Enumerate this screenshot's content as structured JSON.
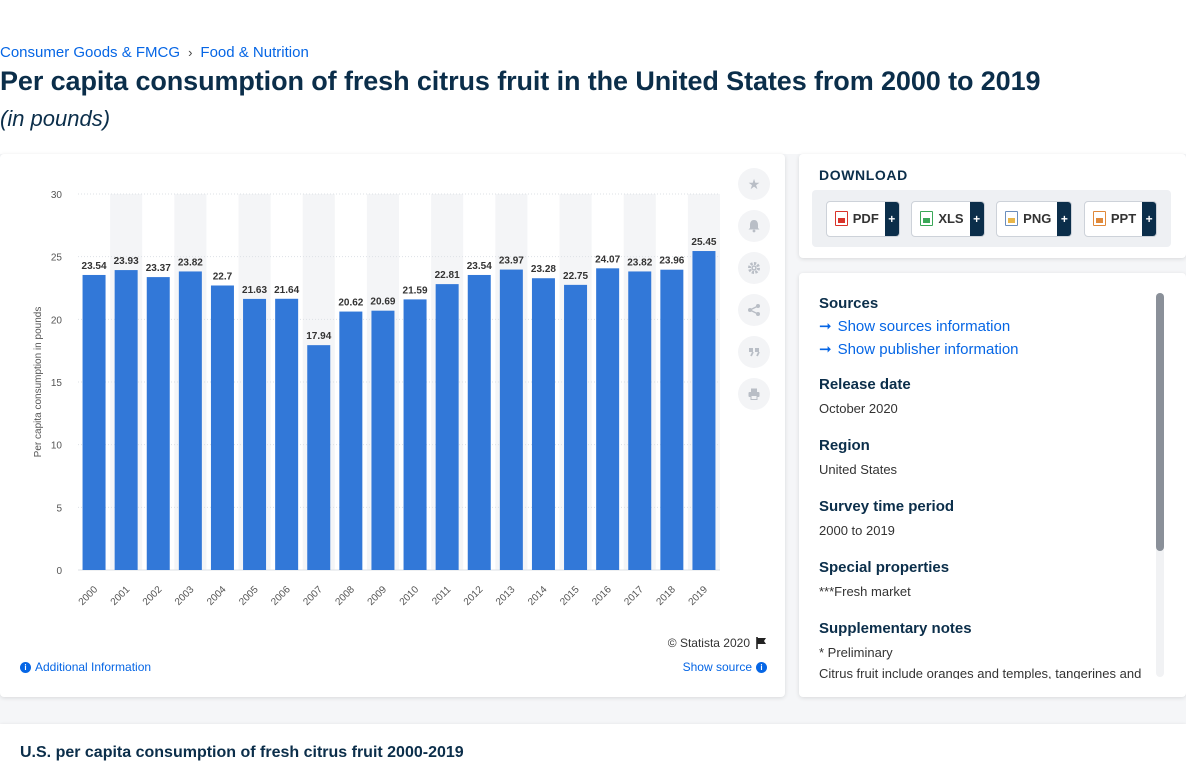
{
  "breadcrumb": {
    "items": [
      "Consumer Goods & FMCG",
      "Food & Nutrition"
    ],
    "separator": "›"
  },
  "title": "Per capita consumption of fresh citrus fruit in the United States from 2000 to 2019",
  "subtitle": "(in pounds)",
  "chart_data": {
    "type": "bar",
    "categories": [
      "2000",
      "2001",
      "2002",
      "2003",
      "2004",
      "2005",
      "2006",
      "2007",
      "2008",
      "2009",
      "2010",
      "2011",
      "2012",
      "2013",
      "2014",
      "2015",
      "2016",
      "2017",
      "2018",
      "2019"
    ],
    "values": [
      23.54,
      23.93,
      23.37,
      23.82,
      22.7,
      21.63,
      21.64,
      17.94,
      20.62,
      20.69,
      21.59,
      22.81,
      23.54,
      23.97,
      23.28,
      22.75,
      24.07,
      23.82,
      23.96,
      25.45
    ],
    "xlabel": "",
    "ylabel": "Per capita consumption in pounds",
    "ylim": [
      0,
      30
    ],
    "yticks": [
      0,
      5,
      10,
      15,
      20,
      25,
      30
    ],
    "bar_color": "#3278d8",
    "grid": true
  },
  "chart_footer": {
    "copyright": "© Statista 2020",
    "additional_info": "Additional Information",
    "show_source": "Show source"
  },
  "side_tools": [
    "star-icon",
    "bell-icon",
    "gear-icon",
    "share-icon",
    "quote-icon",
    "print-icon"
  ],
  "download": {
    "title": "DOWNLOAD",
    "buttons": [
      {
        "label": "PDF",
        "plus": "+"
      },
      {
        "label": "XLS",
        "plus": "+"
      },
      {
        "label": "PNG",
        "plus": "+"
      },
      {
        "label": "PPT",
        "plus": "+"
      }
    ]
  },
  "info": {
    "sources_label": "Sources",
    "show_sources": "Show sources information",
    "show_publisher": "Show publisher information",
    "release_label": "Release date",
    "release_value": "October 2020",
    "region_label": "Region",
    "region_value": "United States",
    "survey_label": "Survey time period",
    "survey_value": "2000 to 2019",
    "special_label": "Special properties",
    "special_value": "***Fresh market",
    "notes_label": "Supplementary notes",
    "notes_line1": "* Preliminary",
    "notes_line2": "Citrus fruit include oranges and temples, tangerines and tangelos, lemons, limes and grapefruit. Based"
  },
  "bottom": {
    "title": "U.S. per capita consumption of fresh citrus fruit 2000-2019"
  },
  "colors": {
    "accent": "#0666e5",
    "navy": "#0b2e4a",
    "bar": "#3278d8"
  }
}
